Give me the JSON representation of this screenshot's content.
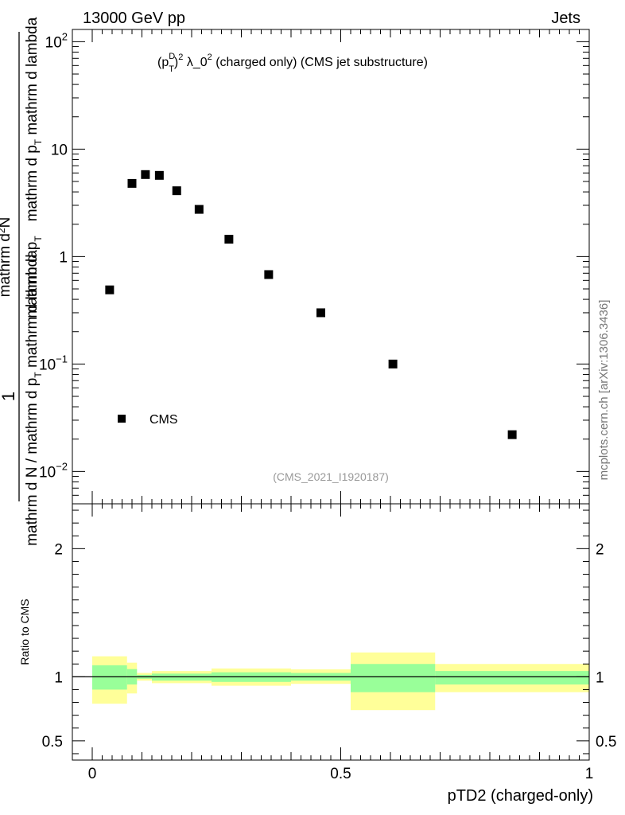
{
  "header": {
    "left_label": "13000 GeV pp",
    "right_label": "Jets",
    "side_label": "mcplots.cern.ch [arXiv:1306.3436]"
  },
  "chart_data": [
    {
      "type": "scatter",
      "title": "(p_T^D)^2 λ_0^2 (charged only) (CMS jet substructure)",
      "title_parts": {
        "p": "(p",
        "sup_d": "D",
        "sub_t": "T",
        "close": ")",
        "sup2a": "2",
        "mid": " λ_0",
        "sup2b": "2",
        "tail": " (charged only) (CMS jet substructure)"
      },
      "ylabel_parts": {
        "one": "1",
        "den_a": "mathrm d N / mathrm d p",
        "den_sub": "T",
        "den_b": " mathrm d lambda",
        "num_a": "mathrm d",
        "num_sup": "2",
        "num_b": "N",
        "num_c": "mathrm d p",
        "num_sub": "T",
        "num_d": " mathrm d p",
        "num_sub2": "T",
        "num_e": " mathrm d lambda"
      },
      "y_scale": "log",
      "ylim": [
        0.005,
        130
      ],
      "xlim": [
        -0.04,
        1.0
      ],
      "y_ticks": [
        {
          "value": 0.01,
          "base": "10",
          "exp": "−2"
        },
        {
          "value": 0.1,
          "base": "10",
          "exp": "−1"
        },
        {
          "value": 1,
          "label": "1"
        },
        {
          "value": 10,
          "label": "10"
        },
        {
          "value": 100,
          "base": "10",
          "exp": "2"
        }
      ],
      "series": [
        {
          "name": "CMS",
          "color": "#000000",
          "marker": "square",
          "x": [
            0.035,
            0.08,
            0.107,
            0.135,
            0.17,
            0.215,
            0.275,
            0.355,
            0.46,
            0.605,
            0.845
          ],
          "y": [
            0.49,
            4.8,
            5.8,
            5.7,
            4.1,
            2.75,
            1.45,
            0.68,
            0.3,
            0.1,
            0.022
          ]
        }
      ],
      "legend": {
        "placement": "bottom-left",
        "entries": [
          "CMS"
        ]
      },
      "watermark": "(CMS_2021_I1920187)"
    },
    {
      "type": "area",
      "ylabel": "Ratio to CMS",
      "xlabel": "pTD2 (charged-only)",
      "xlim": [
        -0.04,
        1.0
      ],
      "ylim": [
        0.35,
        2.35
      ],
      "x_ticks": [
        {
          "value": 0,
          "label": "0"
        },
        {
          "value": 0.5,
          "label": "0.5"
        },
        {
          "value": 1,
          "label": "1"
        }
      ],
      "y_ticks": [
        {
          "value": 0.5,
          "label": "0.5"
        },
        {
          "value": 1,
          "label": "1"
        },
        {
          "value": 2,
          "label": "2"
        }
      ],
      "reference_line": 1,
      "colors": {
        "outer_band": "#ffff99",
        "inner_band": "#99ff99",
        "line": "#000000"
      },
      "bands": [
        {
          "x0": 0.0,
          "x1": 0.07,
          "inner": [
            0.9,
            1.09
          ],
          "outer": [
            0.79,
            1.16
          ]
        },
        {
          "x0": 0.07,
          "x1": 0.09,
          "inner": [
            0.94,
            1.06
          ],
          "outer": [
            0.87,
            1.11
          ]
        },
        {
          "x0": 0.09,
          "x1": 0.12,
          "inner": [
            0.985,
            1.015
          ],
          "outer": [
            0.97,
            1.03
          ]
        },
        {
          "x0": 0.12,
          "x1": 0.24,
          "inner": [
            0.97,
            1.025
          ],
          "outer": [
            0.95,
            1.045
          ]
        },
        {
          "x0": 0.24,
          "x1": 0.4,
          "inner": [
            0.96,
            1.035
          ],
          "outer": [
            0.93,
            1.065
          ]
        },
        {
          "x0": 0.4,
          "x1": 0.52,
          "inner": [
            0.97,
            1.03
          ],
          "outer": [
            0.945,
            1.058
          ]
        },
        {
          "x0": 0.52,
          "x1": 0.69,
          "inner": [
            0.88,
            1.1
          ],
          "outer": [
            0.74,
            1.19
          ]
        },
        {
          "x0": 0.69,
          "x1": 1.0,
          "inner": [
            0.94,
            1.045
          ],
          "outer": [
            0.88,
            1.1
          ]
        }
      ]
    }
  ]
}
